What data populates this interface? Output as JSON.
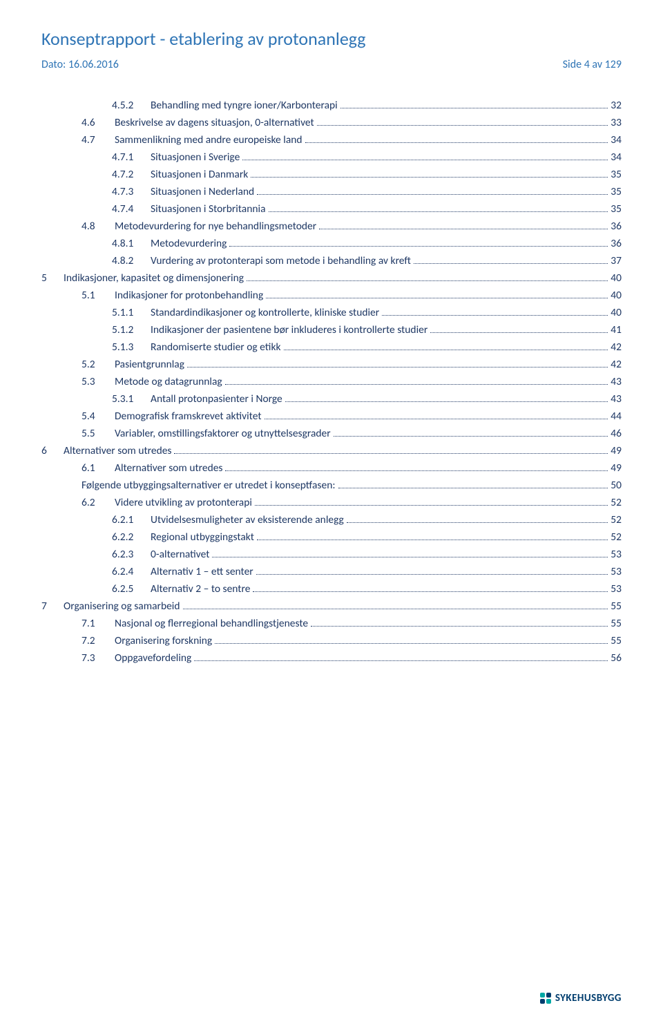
{
  "header": {
    "title": "Konseptrapport - etablering av protonanlegg",
    "date_label": "Dato: 16.06.2016",
    "page_label": "Side 4 av 129"
  },
  "colors": {
    "header_blue": "#2e74b5",
    "toc_text": "#1f3864",
    "logo_teal": "#00a9a5",
    "logo_navy": "#003d6e"
  },
  "toc": [
    {
      "level": 3,
      "num": "4.5.2",
      "text": "Behandling med tyngre ioner/Karbonterapi",
      "page": "32"
    },
    {
      "level": 2,
      "num": "4.6",
      "text": "Beskrivelse av dagens situasjon, 0-alternativet",
      "page": "33"
    },
    {
      "level": 2,
      "num": "4.7",
      "text": "Sammenlikning med andre europeiske land",
      "page": "34"
    },
    {
      "level": 3,
      "num": "4.7.1",
      "text": "Situasjonen i Sverige",
      "page": "34"
    },
    {
      "level": 3,
      "num": "4.7.2",
      "text": "Situasjonen i Danmark",
      "page": "35"
    },
    {
      "level": 3,
      "num": "4.7.3",
      "text": "Situasjonen i Nederland",
      "page": "35"
    },
    {
      "level": 3,
      "num": "4.7.4",
      "text": "Situasjonen i Storbritannia",
      "page": "35"
    },
    {
      "level": 2,
      "num": "4.8",
      "text": "Metodevurdering for nye behandlingsmetoder",
      "page": "36"
    },
    {
      "level": 3,
      "num": "4.8.1",
      "text": "Metodevurdering",
      "page": "36"
    },
    {
      "level": 3,
      "num": "4.8.2",
      "text": "Vurdering av protonterapi som metode i behandling av kreft",
      "page": "37"
    },
    {
      "level": 1,
      "num": "5",
      "text": "Indikasjoner, kapasitet og dimensjonering",
      "page": "40"
    },
    {
      "level": 2,
      "num": "5.1",
      "text": "Indikasjoner for protonbehandling",
      "page": "40"
    },
    {
      "level": 3,
      "num": "5.1.1",
      "text": "Standardindikasjoner og kontrollerte, kliniske studier",
      "page": "40"
    },
    {
      "level": 3,
      "num": "5.1.2",
      "text": "Indikasjoner der pasientene bør inkluderes i kontrollerte studier",
      "page": "41"
    },
    {
      "level": 3,
      "num": "5.1.3",
      "text": "Randomiserte studier og etikk",
      "page": "42"
    },
    {
      "level": 2,
      "num": "5.2",
      "text": "Pasientgrunnlag",
      "page": "42"
    },
    {
      "level": 2,
      "num": "5.3",
      "text": "Metode og datagrunnlag",
      "page": "43"
    },
    {
      "level": 3,
      "num": "5.3.1",
      "text": "Antall protonpasienter i Norge",
      "page": "43"
    },
    {
      "level": 2,
      "num": "5.4",
      "text": "Demografisk framskrevet aktivitet",
      "page": "44"
    },
    {
      "level": 2,
      "num": "5.5",
      "text": "Variabler, omstillingsfaktorer og utnyttelsesgrader",
      "page": "46"
    },
    {
      "level": 1,
      "num": "6",
      "text": "Alternativer som utredes",
      "page": "49"
    },
    {
      "level": 2,
      "num": "6.1",
      "text": "Alternativer som utredes",
      "page": "49"
    },
    {
      "level": "2-noindent",
      "num": "",
      "text": "Følgende utbyggingsalternativer er utredet i konseptfasen:",
      "page": "50"
    },
    {
      "level": 2,
      "num": "6.2",
      "text": "Videre utvikling av protonterapi",
      "page": "52"
    },
    {
      "level": 3,
      "num": "6.2.1",
      "text": "Utvidelsesmuligheter av eksisterende anlegg",
      "page": "52"
    },
    {
      "level": 3,
      "num": "6.2.2",
      "text": "Regional utbyggingstakt",
      "page": "52"
    },
    {
      "level": 3,
      "num": "6.2.3",
      "text": "0-alternativet",
      "page": "53"
    },
    {
      "level": 3,
      "num": "6.2.4",
      "text": "Alternativ 1 – ett senter",
      "page": "53"
    },
    {
      "level": 3,
      "num": "6.2.5",
      "text": "Alternativ 2 – to sentre",
      "page": "53"
    },
    {
      "level": 1,
      "num": "7",
      "text": "Organisering og samarbeid",
      "page": "55"
    },
    {
      "level": 2,
      "num": "7.1",
      "text": "Nasjonal og flerregional behandlingstjeneste",
      "page": "55"
    },
    {
      "level": 2,
      "num": "7.2",
      "text": "Organisering forskning",
      "page": "55"
    },
    {
      "level": 2,
      "num": "7.3",
      "text": "Oppgavefordeling",
      "page": "56"
    }
  ],
  "footer": {
    "logo_text": "SYKEHUSBYGG"
  }
}
